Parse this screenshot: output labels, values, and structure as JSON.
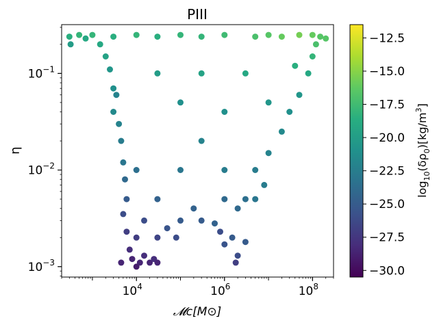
{
  "chart_data": {
    "type": "scatter",
    "title": "PIII",
    "xlabel": "𝓜c[M⊙]",
    "ylabel": "η",
    "xscale": "log",
    "yscale": "log",
    "xlim": [
      200,
      300000000
    ],
    "ylim": [
      0.00078,
      0.32
    ],
    "x_ticks": [
      {
        "value": 10000,
        "label": "10^4",
        "base": "10",
        "exp": "4"
      },
      {
        "value": 1000000,
        "label": "10^6",
        "base": "10",
        "exp": "6"
      },
      {
        "value": 100000000,
        "label": "10^8",
        "base": "10",
        "exp": "8"
      }
    ],
    "y_ticks": [
      {
        "value": 0.001,
        "label": "10^-3",
        "base": "10",
        "exp": "−3"
      },
      {
        "value": 0.01,
        "label": "10^-2",
        "base": "10",
        "exp": "−2"
      },
      {
        "value": 0.1,
        "label": "10^-1",
        "base": "10",
        "exp": "−1"
      }
    ],
    "colorbar": {
      "label": "log10(δρ0)[kg/m3]",
      "label_parts": {
        "prefix": "log",
        "sub1": "10",
        "mid": "(δρ",
        "sub2": "0",
        "suffix": ")[kg/m",
        "sup": "3",
        "end": "]"
      },
      "range": [
        -30.5,
        -11.5
      ],
      "colormap": "viridis",
      "ticks": [
        -30.0,
        -27.5,
        -25.0,
        -22.5,
        -20.0,
        -17.5,
        -15.0,
        -12.5
      ],
      "tick_labels": [
        "−30.0",
        "−27.5",
        "−25.0",
        "−22.5",
        "−20.0",
        "−17.5",
        "−15.0",
        "−12.5"
      ]
    },
    "points": [
      [
        300,
        0.24,
        -18.5
      ],
      [
        320,
        0.2,
        -20.0
      ],
      [
        500,
        0.25,
        -18.0
      ],
      [
        700,
        0.23,
        -19.0
      ],
      [
        1000,
        0.25,
        -18.0
      ],
      [
        1500,
        0.2,
        -19.0
      ],
      [
        2000,
        0.15,
        -19.5
      ],
      [
        2500,
        0.11,
        -20.5
      ],
      [
        3000,
        0.07,
        -21.0
      ],
      [
        3000,
        0.04,
        -21.5
      ],
      [
        3500,
        0.06,
        -22.0
      ],
      [
        4000,
        0.03,
        -22.0
      ],
      [
        4500,
        0.02,
        -22.5
      ],
      [
        5000,
        0.012,
        -23.0
      ],
      [
        5500,
        0.008,
        -24.0
      ],
      [
        6000,
        0.005,
        -25.0
      ],
      [
        5000,
        0.0035,
        -26.0
      ],
      [
        6000,
        0.0023,
        -27.0
      ],
      [
        4500,
        0.0011,
        -28.5
      ],
      [
        7000,
        0.0015,
        -28.0
      ],
      [
        8000,
        0.0012,
        -28.5
      ],
      [
        10000,
        0.001,
        -29.0
      ],
      [
        12000,
        0.0011,
        -28.5
      ],
      [
        15000,
        0.0013,
        -28.0
      ],
      [
        20000,
        0.0011,
        -28.5
      ],
      [
        25000,
        0.0012,
        -28.0
      ],
      [
        30000,
        0.0011,
        -28.5
      ],
      [
        10000,
        0.002,
        -27.0
      ],
      [
        15000,
        0.003,
        -26.0
      ],
      [
        30000,
        0.002,
        -26.5
      ],
      [
        50000,
        0.0025,
        -25.5
      ],
      [
        80000,
        0.002,
        -26.0
      ],
      [
        100000,
        0.003,
        -25.0
      ],
      [
        200000,
        0.004,
        -24.5
      ],
      [
        300000,
        0.003,
        -25.0
      ],
      [
        600000,
        0.0028,
        -24.5
      ],
      [
        800000,
        0.0023,
        -26.0
      ],
      [
        1000000,
        0.0017,
        -25.5
      ],
      [
        1500000,
        0.002,
        -25.0
      ],
      [
        2000000,
        0.0013,
        -26.0
      ],
      [
        3000000,
        0.0018,
        -25.0
      ],
      [
        1800000,
        0.0011,
        -27.0
      ],
      [
        1000000,
        0.005,
        -24.0
      ],
      [
        2000000,
        0.004,
        -24.0
      ],
      [
        3000000,
        0.005,
        -23.5
      ],
      [
        5000000,
        0.005,
        -23.0
      ],
      [
        8000000,
        0.007,
        -22.5
      ],
      [
        5000000,
        0.01,
        -22.5
      ],
      [
        10000000,
        0.015,
        -22.0
      ],
      [
        20000000,
        0.025,
        -21.5
      ],
      [
        30000000,
        0.04,
        -21.0
      ],
      [
        50000000,
        0.06,
        -20.5
      ],
      [
        80000000,
        0.1,
        -19.0
      ],
      [
        100000000,
        0.15,
        -18.0
      ],
      [
        120000000,
        0.2,
        -17.0
      ],
      [
        150000000,
        0.24,
        -16.5
      ],
      [
        100000000,
        0.25,
        -16.0
      ],
      [
        50000000,
        0.25,
        -15.5
      ],
      [
        20000000,
        0.24,
        -16.0
      ],
      [
        10000000,
        0.25,
        -16.5
      ],
      [
        5000000,
        0.24,
        -17.0
      ],
      [
        1000000,
        0.25,
        -17.5
      ],
      [
        300000,
        0.24,
        -18.0
      ],
      [
        100000,
        0.25,
        -18.0
      ],
      [
        30000,
        0.24,
        -18.5
      ],
      [
        10000,
        0.25,
        -18.0
      ],
      [
        3000,
        0.24,
        -18.5
      ],
      [
        30000,
        0.1,
        -20.0
      ],
      [
        100000,
        0.05,
        -21.0
      ],
      [
        300000,
        0.02,
        -22.0
      ],
      [
        1000000,
        0.01,
        -22.5
      ],
      [
        100000,
        0.01,
        -23.0
      ],
      [
        30000,
        0.005,
        -24.5
      ],
      [
        10000,
        0.01,
        -23.5
      ],
      [
        300000,
        0.1,
        -19.5
      ],
      [
        3000000,
        0.1,
        -19.0
      ],
      [
        10000000,
        0.05,
        -20.5
      ],
      [
        1000000,
        0.04,
        -21.0
      ],
      [
        40000000,
        0.12,
        -18.5
      ],
      [
        200000000,
        0.23,
        -16.5
      ]
    ]
  }
}
